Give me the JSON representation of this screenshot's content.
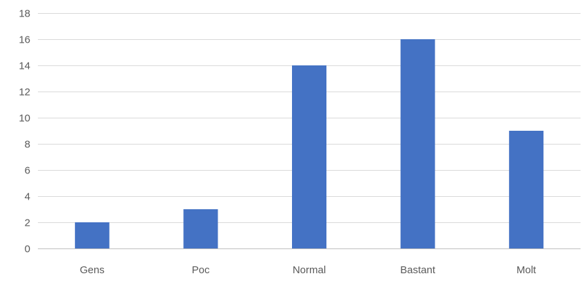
{
  "chart_data": {
    "type": "bar",
    "categories": [
      "Gens",
      "Poc",
      "Normal",
      "Bastant",
      "Molt"
    ],
    "values": [
      2,
      3,
      14,
      16,
      9
    ],
    "ylim": [
      0,
      18
    ],
    "yticks": [
      0,
      2,
      4,
      6,
      8,
      10,
      12,
      14,
      16,
      18
    ],
    "grid": true,
    "bar_color": "#4472c4",
    "title": "",
    "xlabel": "",
    "ylabel": ""
  }
}
